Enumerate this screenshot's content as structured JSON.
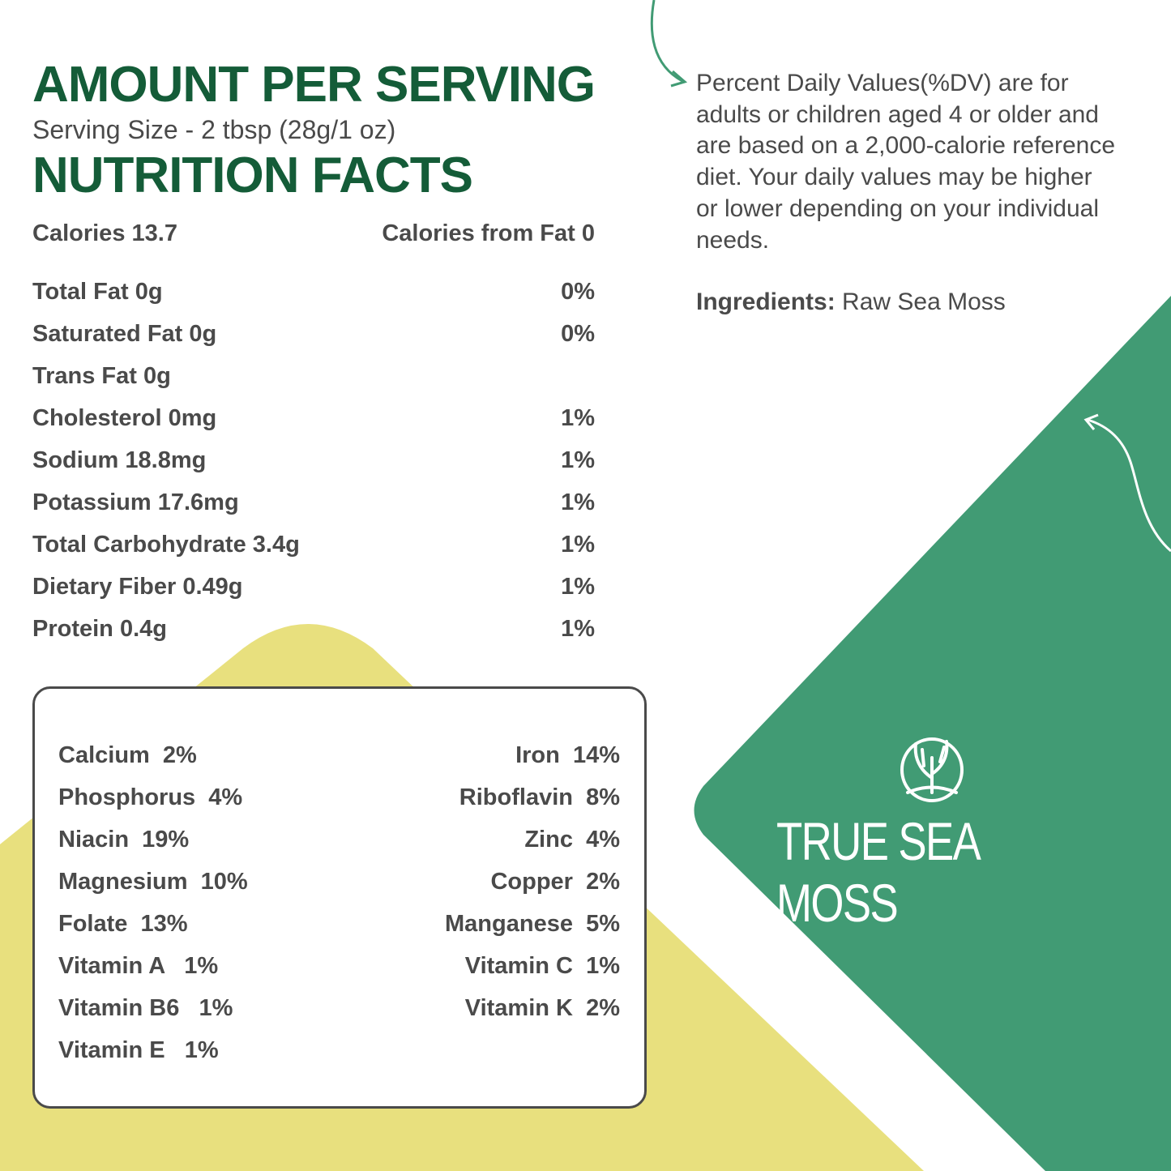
{
  "colors": {
    "heading": "#145c38",
    "text": "#4a4a4a",
    "yellow": "#e8e07e",
    "green": "#419b74"
  },
  "header": {
    "title": "AMOUNT PER SERVING",
    "serving_size": "Serving Size - 2  tbsp (28g/1 oz)",
    "subtitle": "NUTRITION FACTS"
  },
  "calories": {
    "label": "Calories 13.7",
    "from_fat": "Calories from Fat 0"
  },
  "nutrients": [
    {
      "name": "Total Fat  0g",
      "dv": "0%"
    },
    {
      "name": "Saturated Fat  0g",
      "dv": "0%"
    },
    {
      "name": "Trans Fat  0g",
      "dv": ""
    },
    {
      "name": "Cholesterol  0mg",
      "dv": "1%"
    },
    {
      "name": "Sodium  18.8mg",
      "dv": "1%"
    },
    {
      "name": "Potassium  17.6mg",
      "dv": "1%"
    },
    {
      "name": "Total Carbohydrate  3.4g",
      "dv": "1%"
    },
    {
      "name": "Dietary Fiber  0.49g",
      "dv": "1%"
    },
    {
      "name": "Protein  0.4g",
      "dv": "1%"
    }
  ],
  "vitamins_left": [
    "Calcium  2%",
    "Phosphorus  4%",
    "Niacin  19%",
    "Magnesium  10%",
    "Folate  13%",
    "Vitamin A   1%",
    "Vitamin B6   1%",
    "Vitamin E   1%"
  ],
  "vitamins_right": [
    "Iron  14%",
    "Riboflavin  8%",
    "Zinc  4%",
    "Copper  2%",
    "Manganese  5%",
    "Vitamin C  1%",
    "Vitamin K  2%"
  ],
  "note": "Percent Daily Values(%DV) are for adults or children aged 4 or older and are based on a 2,000-calorie reference diet. Your daily values may be higher or lower depending on your individual needs.",
  "ingredients": {
    "label": "Ingredients:",
    "value": " Raw Sea Moss"
  },
  "brand": {
    "name": "TRUE SEA MOSS",
    "icon": "seaweed-circle-icon"
  }
}
